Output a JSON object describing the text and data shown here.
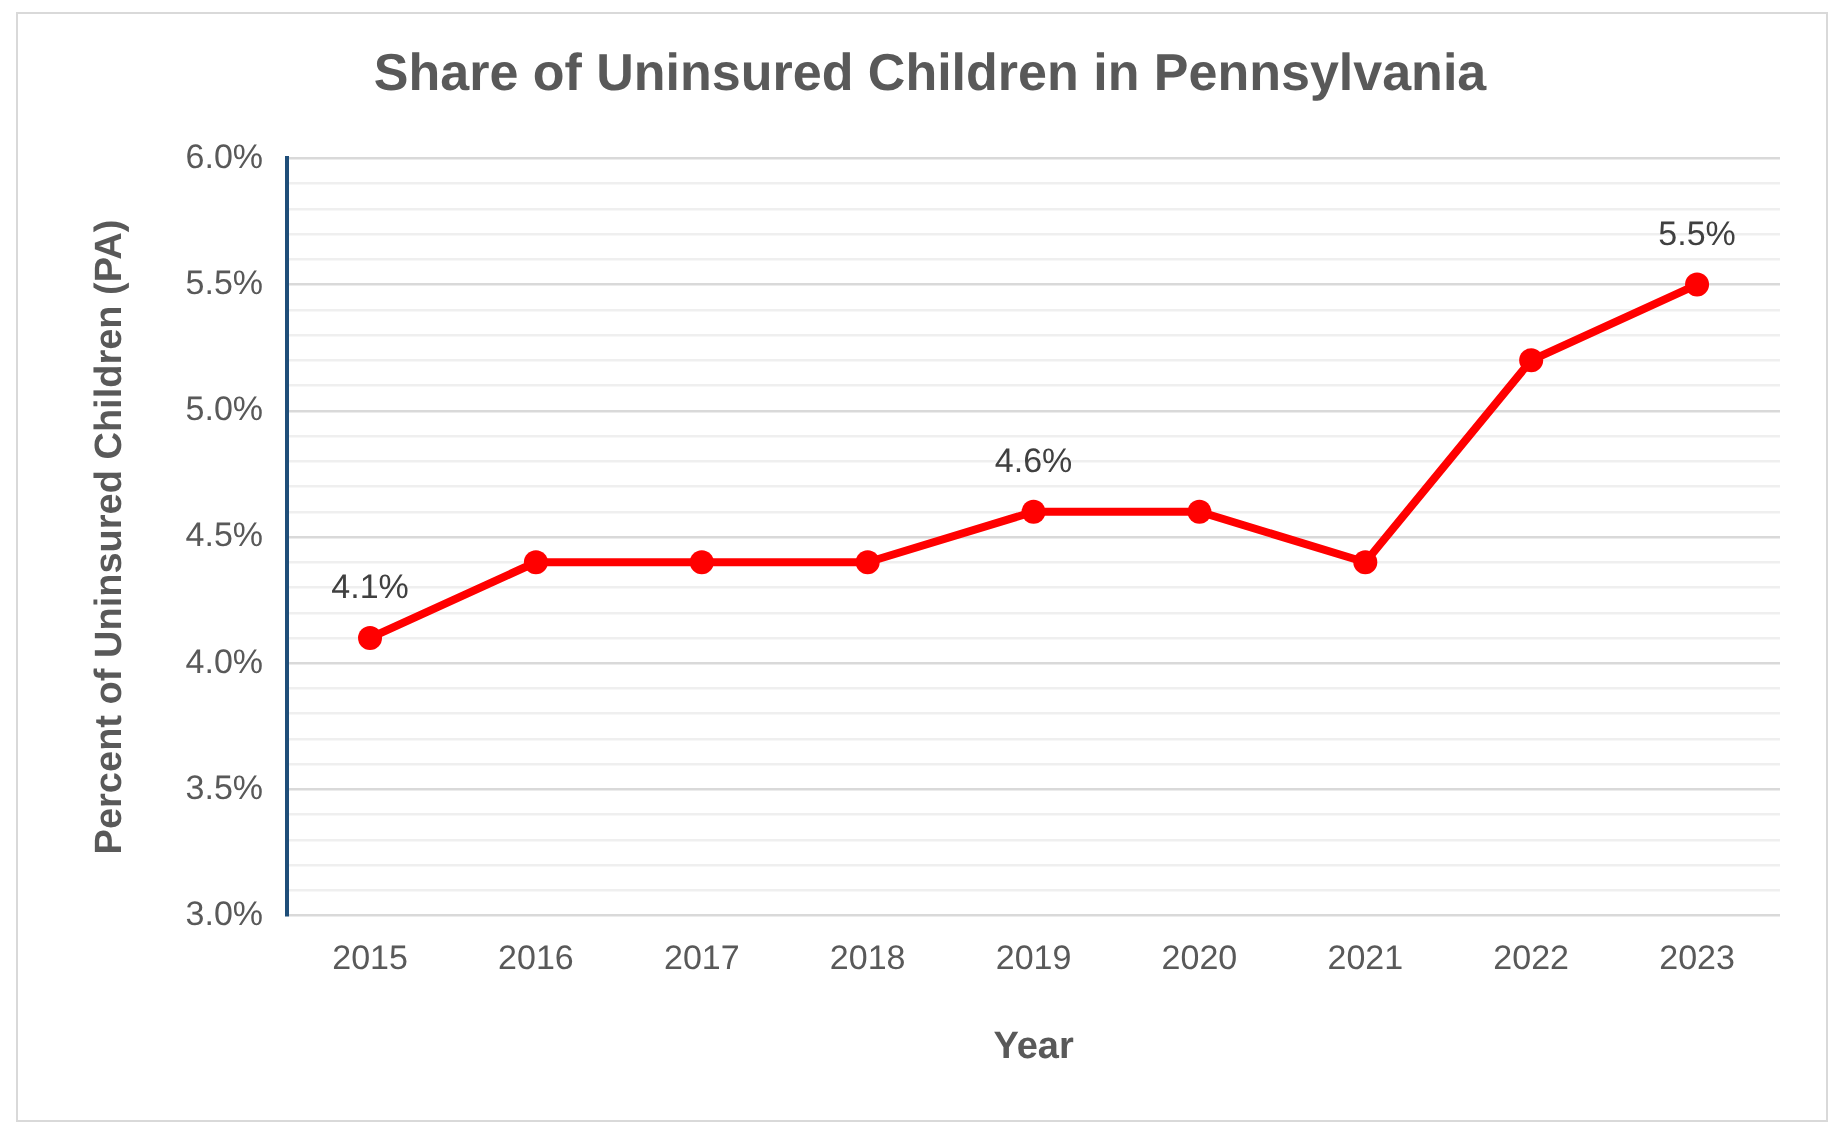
{
  "chart_data": {
    "type": "line",
    "title": "Share of Uninsured Children in Pennsylvania",
    "xlabel": "Year",
    "ylabel": "Percent of Uninsured Children (PA)",
    "categories": [
      "2015",
      "2016",
      "2017",
      "2018",
      "2019",
      "2020",
      "2021",
      "2022",
      "2023"
    ],
    "series": [
      {
        "color": "#ff0000",
        "values": [
          4.1,
          4.4,
          4.4,
          4.4,
          4.6,
          4.6,
          4.4,
          5.2,
          5.5
        ],
        "value_labels": [
          "4.1%",
          null,
          null,
          null,
          "4.6%",
          null,
          null,
          null,
          "5.5%"
        ]
      }
    ],
    "ylim": [
      3,
      6
    ],
    "yticks": [
      {
        "value": 3,
        "label": "3.0%"
      },
      {
        "value": 3.1,
        "label": null
      },
      {
        "value": 3.2,
        "label": null
      },
      {
        "value": 3.3,
        "label": null
      },
      {
        "value": 3.4,
        "label": null
      },
      {
        "value": 3.5,
        "label": "3.5%"
      },
      {
        "value": 3.6,
        "label": null
      },
      {
        "value": 3.7,
        "label": null
      },
      {
        "value": 3.8,
        "label": null
      },
      {
        "value": 3.9,
        "label": null
      },
      {
        "value": 4,
        "label": "4.0%"
      },
      {
        "value": 4.1,
        "label": null
      },
      {
        "value": 4.2,
        "label": null
      },
      {
        "value": 4.3,
        "label": null
      },
      {
        "value": 4.4,
        "label": null
      },
      {
        "value": 4.5,
        "label": "4.5%"
      },
      {
        "value": 4.6,
        "label": null
      },
      {
        "value": 4.7,
        "label": null
      },
      {
        "value": 4.8,
        "label": null
      },
      {
        "value": 4.9,
        "label": null
      },
      {
        "value": 5,
        "label": "5.0%"
      },
      {
        "value": 5.1,
        "label": null
      },
      {
        "value": 5.2,
        "label": null
      },
      {
        "value": 5.3,
        "label": null
      },
      {
        "value": 5.4,
        "label": null
      },
      {
        "value": 5.5,
        "label": "5.5%"
      },
      {
        "value": 5.6,
        "label": null
      },
      {
        "value": 5.7,
        "label": null
      },
      {
        "value": 5.8,
        "label": null
      },
      {
        "value": 5.9,
        "label": null
      },
      {
        "value": 6,
        "label": "6.0%"
      }
    ],
    "grid": "y",
    "legend": false,
    "marker": "circle",
    "line_style": "solid"
  }
}
